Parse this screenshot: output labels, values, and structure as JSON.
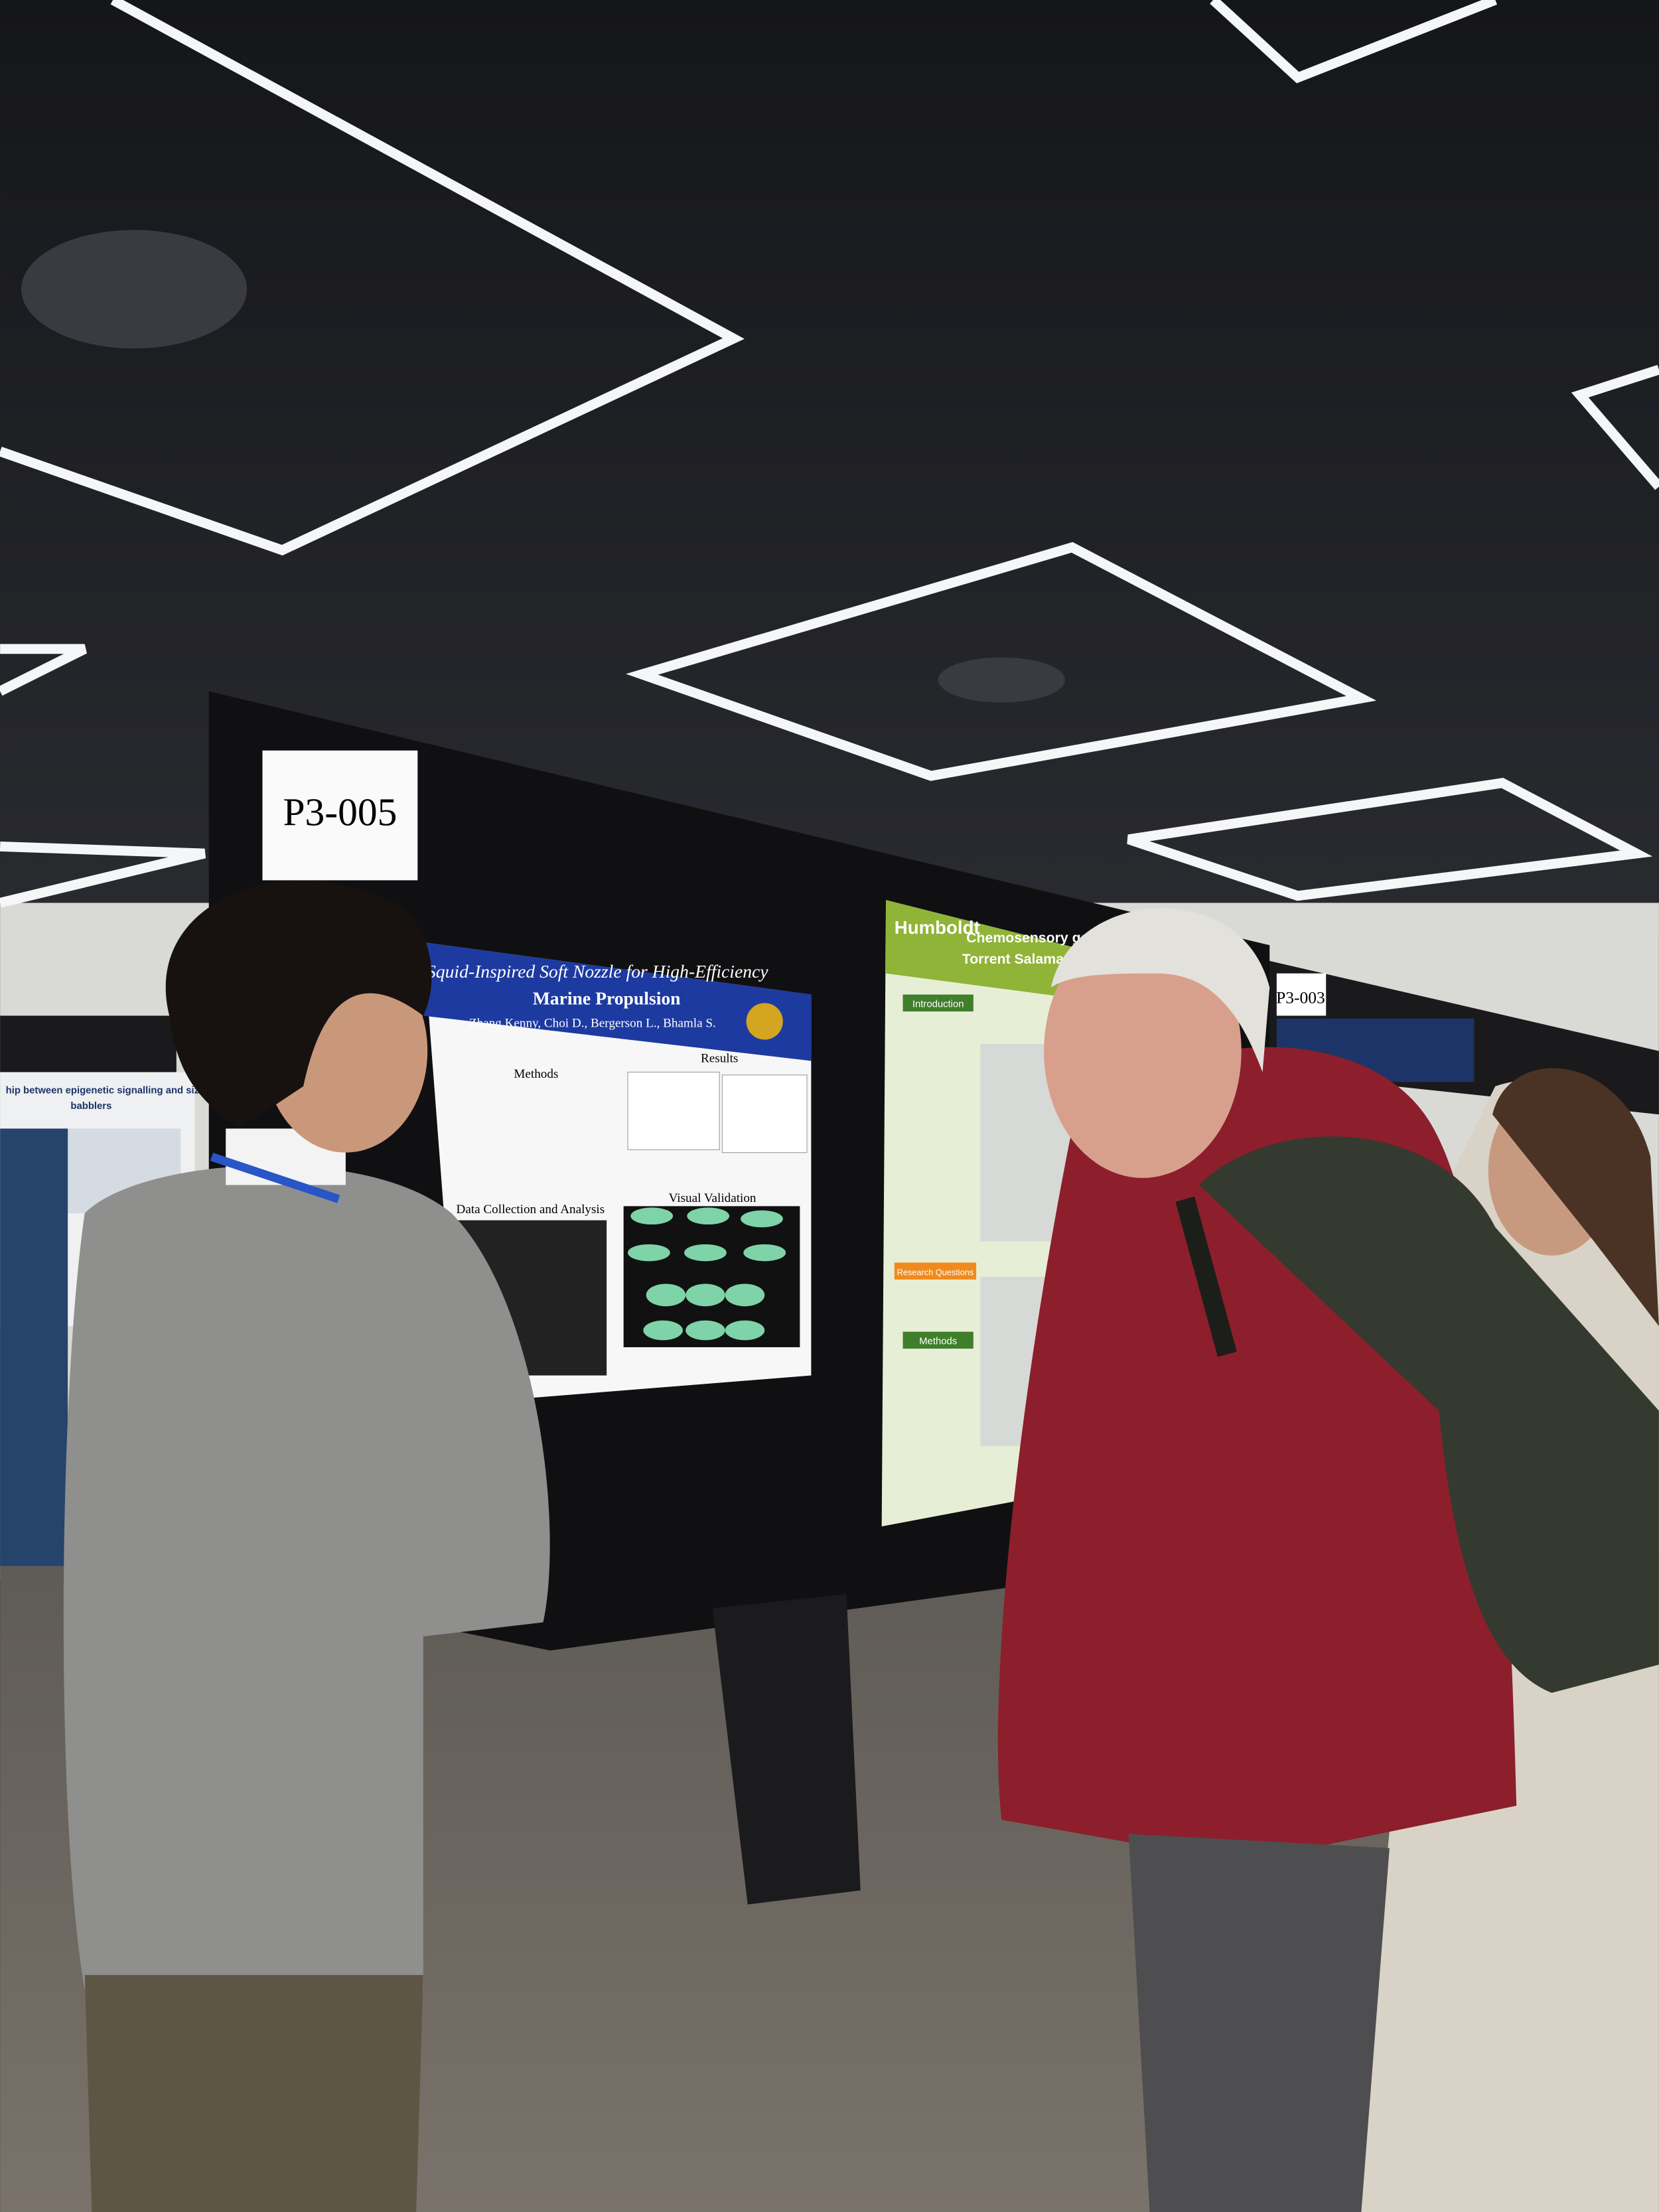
{
  "signs": {
    "main": "P3-005",
    "right": "P3-003"
  },
  "main_poster": {
    "title_line1": "A Squid-Inspired Soft Nozzle for High-Efficiency",
    "title_line2": "Marine Propulsion",
    "authors": "Zhang Kenny, Choi D., Bergerson L., Bhamla S.",
    "sections": [
      "Methods",
      "Results",
      "Data Collection and Analysis",
      "Visual Validation"
    ]
  },
  "right_poster": {
    "institution": "Humboldt",
    "title_line1": "Chemosensory gene",
    "title_line2": "Torrent Salamanders",
    "sections": [
      "Introduction",
      "Research Questions",
      "Methods"
    ]
  },
  "left_poster": {
    "title_line1": "hip between epigenetic signalling and size in chestnut-crowned",
    "title_line2": "babblers"
  }
}
